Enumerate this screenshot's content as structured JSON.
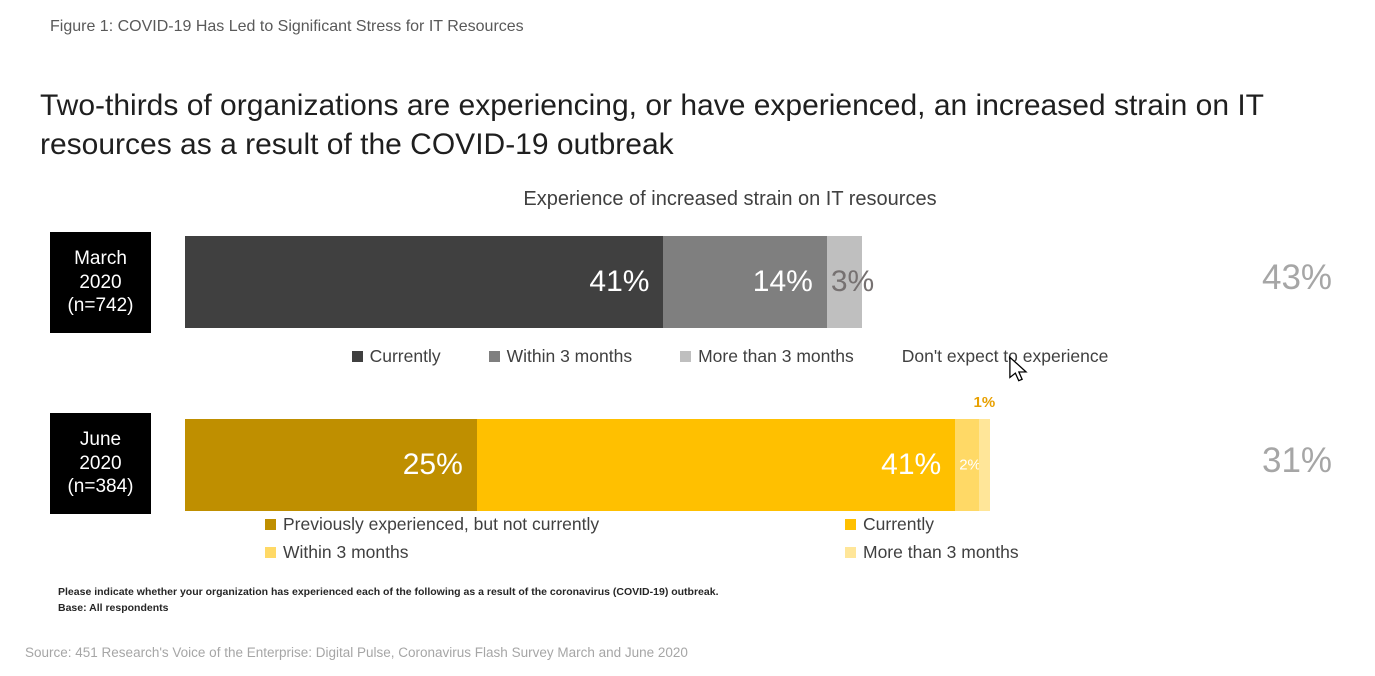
{
  "figure_caption": "Figure 1: COVID-19 Has Led to Significant Stress for IT Resources",
  "title": "Two-thirds of organizations are experiencing, or have experienced, an increased strain on IT resources as a result of the COVID-19 outbreak",
  "chart_data": {
    "type": "bar",
    "orientation": "horizontal",
    "stacked": true,
    "title": "Experience of increased strain on IT resources",
    "axis": {
      "unit": "percent",
      "range": [
        0,
        100
      ],
      "grid": false
    },
    "rows": [
      {
        "id": "march-2020",
        "label_lines": [
          "March",
          "2020",
          "(n=742)"
        ],
        "segments": [
          {
            "key": "currently",
            "name": "Currently",
            "value": 41,
            "color": "#404040",
            "label": "41%",
            "label_color": "#ffffff",
            "label_position": "inside-right",
            "label_size": 30
          },
          {
            "key": "within-3-months",
            "name": "Within 3 months",
            "value": 14,
            "color": "#7f7f7f",
            "label": "14%",
            "label_color": "#ffffff",
            "label_position": "inside-right",
            "label_size": 30
          },
          {
            "key": "more-than-3-months",
            "name": "More than 3 months",
            "value": 3,
            "color": "#bfbfbf",
            "label": "3%",
            "label_color": "#767171",
            "label_position": "overflow-right",
            "label_size": 30
          }
        ],
        "no_experience": {
          "name": "Don't expect to experience",
          "value": 43,
          "label": "43%"
        },
        "legend": [
          {
            "label": "Currently",
            "color": "#404040"
          },
          {
            "label": "Within 3 months",
            "color": "#7f7f7f"
          },
          {
            "label": "More than 3 months",
            "color": "#bfbfbf"
          },
          {
            "label": "Don't expect to experience",
            "color": null
          }
        ]
      },
      {
        "id": "june-2020",
        "label_lines": [
          "June",
          "2020",
          "(n=384)"
        ],
        "segments": [
          {
            "key": "previously-experienced",
            "name": "Previously experienced, but not currently",
            "value": 25,
            "color": "#bf8f00",
            "label": "25%",
            "label_color": "#ffffff",
            "label_position": "inside-right",
            "label_size": 30
          },
          {
            "key": "currently",
            "name": "Currently",
            "value": 41,
            "color": "#ffc000",
            "label": "41%",
            "label_color": "#ffffff",
            "label_position": "inside-right",
            "label_size": 30
          },
          {
            "key": "within-3-months",
            "name": "Within 3 months",
            "value": 2,
            "color": "#ffd966",
            "label": "2%",
            "label_color": "#ffffff",
            "label_position": "overflow-right",
            "label_size": 15
          },
          {
            "key": "more-than-3-months",
            "name": "More than 3 months",
            "value": 1,
            "color": "#ffe699",
            "label": "1%",
            "label_color": "#e8a000",
            "label_position": "above",
            "label_size": 15
          }
        ],
        "no_experience": {
          "name": "Don't expect to experience",
          "value": 31,
          "label": "31%"
        },
        "legend": [
          {
            "label": "Previously experienced, but not currently",
            "color": "#bf8f00"
          },
          {
            "label": "Currently",
            "color": "#ffc000"
          },
          {
            "label": "Within 3 months",
            "color": "#ffd966"
          },
          {
            "label": "More than 3 months",
            "color": "#ffe699"
          }
        ]
      }
    ]
  },
  "footnote": {
    "line1": "Please indicate whether your organization has experienced each of the following as a result of the coronavirus (COVID-19) outbreak.",
    "line2": "Base: All respondents"
  },
  "source": "Source: 451 Research's Voice of the Enterprise: Digital Pulse, Coronavirus Flash Survey March and June 2020"
}
